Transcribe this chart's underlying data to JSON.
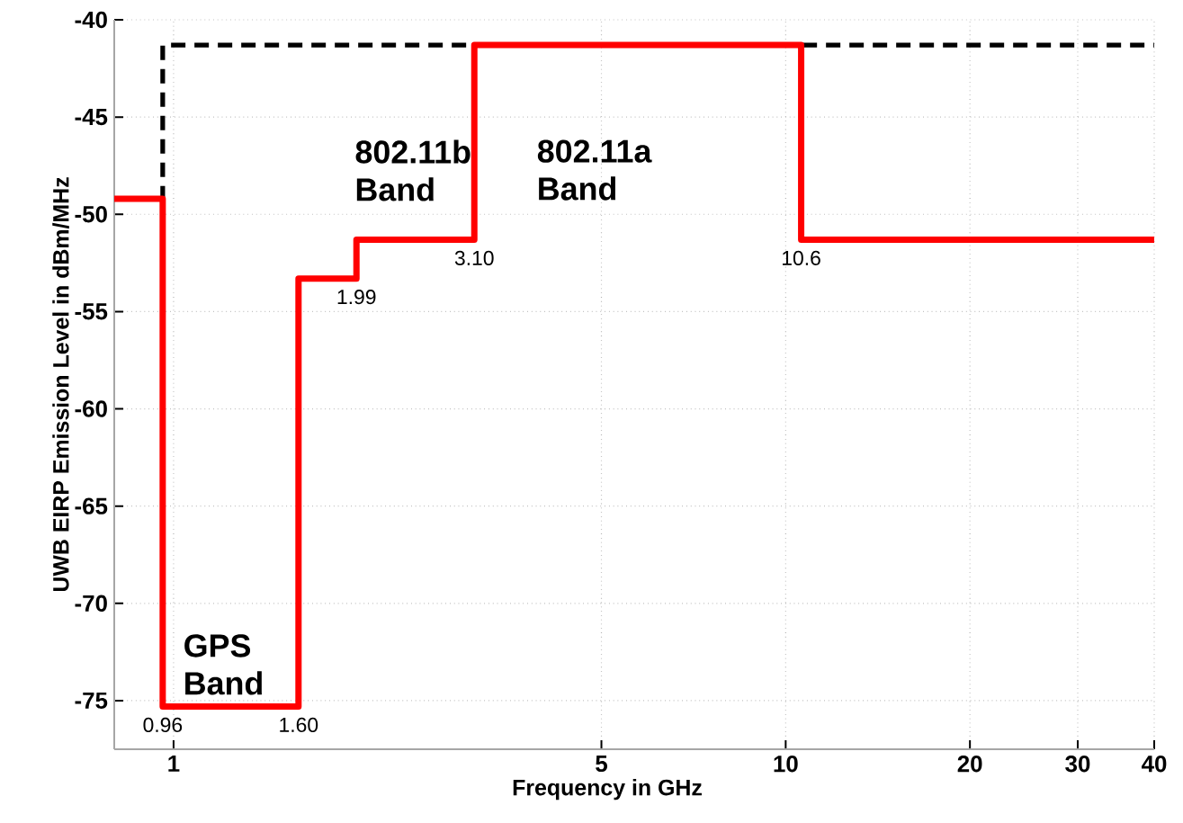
{
  "chart_data": {
    "type": "step",
    "xlabel": "Frequency in GHz",
    "ylabel": "UWB EIRP Emission Level in dBm/MHz",
    "log": "x",
    "xlim": [
      0.8,
      40
    ],
    "ylim": [
      -77.5,
      -40
    ],
    "xticks": [
      1,
      5,
      10,
      20,
      30,
      40
    ],
    "yticks": [
      -75,
      -70,
      -65,
      -60,
      -55,
      -50,
      -45,
      -40
    ],
    "grid": true,
    "marker": "none",
    "series": [
      {
        "color": "#000000",
        "line_style": "dashed",
        "x": [
          0.8,
          0.96,
          40
        ],
        "values": [
          -49.2,
          -41.3,
          -41.3
        ]
      },
      {
        "color": "#ff0000",
        "line_style": "solid",
        "x": [
          0.8,
          0.96,
          1.6,
          1.99,
          3.1,
          10.6,
          40
        ],
        "values": [
          -49.2,
          -75.3,
          -53.3,
          -51.3,
          -41.3,
          -51.3,
          -51.3
        ]
      }
    ],
    "annotations": [
      "802.11b Band",
      "802.11a Band",
      "GPS Band",
      {
        "text": "0.96",
        "x": 0.96,
        "y": -75.3
      },
      {
        "text": "1.60",
        "x": 1.6,
        "y": -75.3
      },
      {
        "text": "1.99",
        "x": 1.99,
        "y": -53.3
      },
      {
        "text": "3.10",
        "x": 3.1,
        "y": -51.3
      },
      {
        "text": "10.6",
        "x": 10.6,
        "y": -51.3
      }
    ]
  }
}
